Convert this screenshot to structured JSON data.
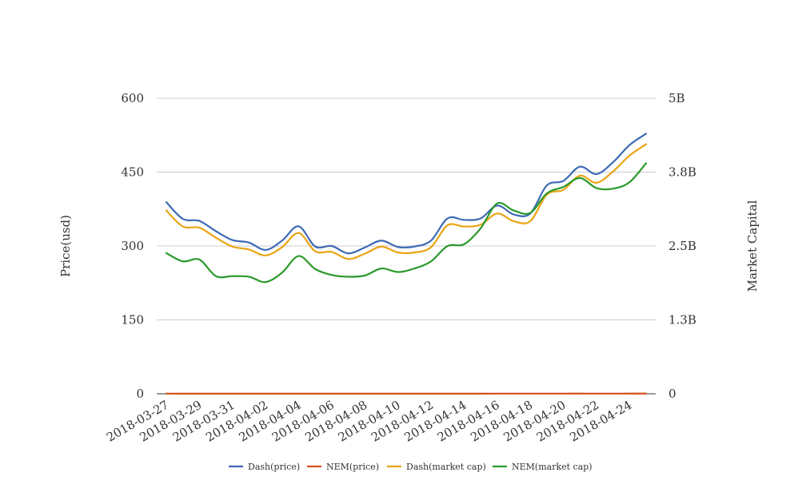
{
  "chart_data": {
    "type": "line",
    "title": "",
    "ylabel_left": "Price(usd)",
    "ylabel_right": "Market Capital",
    "x_tick_labels": [
      "2018-03-27",
      "2018-03-29",
      "2018-03-31",
      "2018-04-02",
      "2018-04-04",
      "2018-04-06",
      "2018-04-08",
      "2018-04-10",
      "2018-04-12",
      "2018-04-14",
      "2018-04-16",
      "2018-04-18",
      "2018-04-20",
      "2018-04-22",
      "2018-04-24"
    ],
    "x": [
      "2018-03-27",
      "2018-03-28",
      "2018-03-29",
      "2018-03-30",
      "2018-03-31",
      "2018-04-01",
      "2018-04-02",
      "2018-04-03",
      "2018-04-04",
      "2018-04-05",
      "2018-04-06",
      "2018-04-07",
      "2018-04-08",
      "2018-04-09",
      "2018-04-10",
      "2018-04-11",
      "2018-04-12",
      "2018-04-13",
      "2018-04-14",
      "2018-04-15",
      "2018-04-16",
      "2018-04-17",
      "2018-04-18",
      "2018-04-19",
      "2018-04-20",
      "2018-04-21",
      "2018-04-22",
      "2018-04-23",
      "2018-04-24",
      "2018-04-25"
    ],
    "ylim_left": [
      0,
      600
    ],
    "yticks_left": [
      0,
      150,
      300,
      450,
      600
    ],
    "ytick_labels_left": [
      "0",
      "150",
      "300",
      "450",
      "600"
    ],
    "ylim_right": [
      0,
      5000000000
    ],
    "ytick_labels_right": [
      "0",
      "1.3B",
      "2.5B",
      "3.8B",
      "5B"
    ],
    "grid": true,
    "legend_position": "bottom",
    "series": [
      {
        "name": "Dash(price)",
        "axis": "left",
        "color": "#3d6ab5",
        "values": [
          389,
          355,
          351,
          330,
          312,
          307,
          292,
          311,
          340,
          299,
          300,
          285,
          297,
          311,
          298,
          299,
          311,
          356,
          353,
          356,
          382,
          364,
          366,
          423,
          432,
          461,
          446,
          470,
          505,
          528
        ]
      },
      {
        "name": "NEM(price)",
        "axis": "left",
        "color": "#d4501e",
        "values": [
          0.29,
          0.25,
          0.25,
          0.23,
          0.22,
          0.22,
          0.21,
          0.22,
          0.24,
          0.21,
          0.21,
          0.2,
          0.21,
          0.22,
          0.21,
          0.21,
          0.22,
          0.25,
          0.25,
          0.26,
          0.3,
          0.29,
          0.29,
          0.32,
          0.33,
          0.35,
          0.33,
          0.34,
          0.35,
          0.4
        ]
      },
      {
        "name": "Dash(market cap)",
        "axis": "right",
        "color": "#eaa414",
        "values": [
          3100000000,
          2830000000,
          2810000000,
          2640000000,
          2490000000,
          2440000000,
          2340000000,
          2480000000,
          2720000000,
          2410000000,
          2400000000,
          2280000000,
          2370000000,
          2490000000,
          2390000000,
          2390000000,
          2480000000,
          2850000000,
          2830000000,
          2860000000,
          3050000000,
          2920000000,
          2920000000,
          3370000000,
          3450000000,
          3690000000,
          3570000000,
          3760000000,
          4030000000,
          4220000000
        ]
      },
      {
        "name": "NEM(market cap)",
        "axis": "right",
        "color": "#2a9a2a",
        "values": [
          2380000000,
          2240000000,
          2270000000,
          1990000000,
          1990000000,
          1980000000,
          1890000000,
          2050000000,
          2330000000,
          2110000000,
          2010000000,
          1980000000,
          2000000000,
          2120000000,
          2060000000,
          2120000000,
          2240000000,
          2500000000,
          2530000000,
          2800000000,
          3220000000,
          3100000000,
          3060000000,
          3390000000,
          3500000000,
          3650000000,
          3480000000,
          3470000000,
          3580000000,
          3900000000
        ]
      }
    ]
  }
}
